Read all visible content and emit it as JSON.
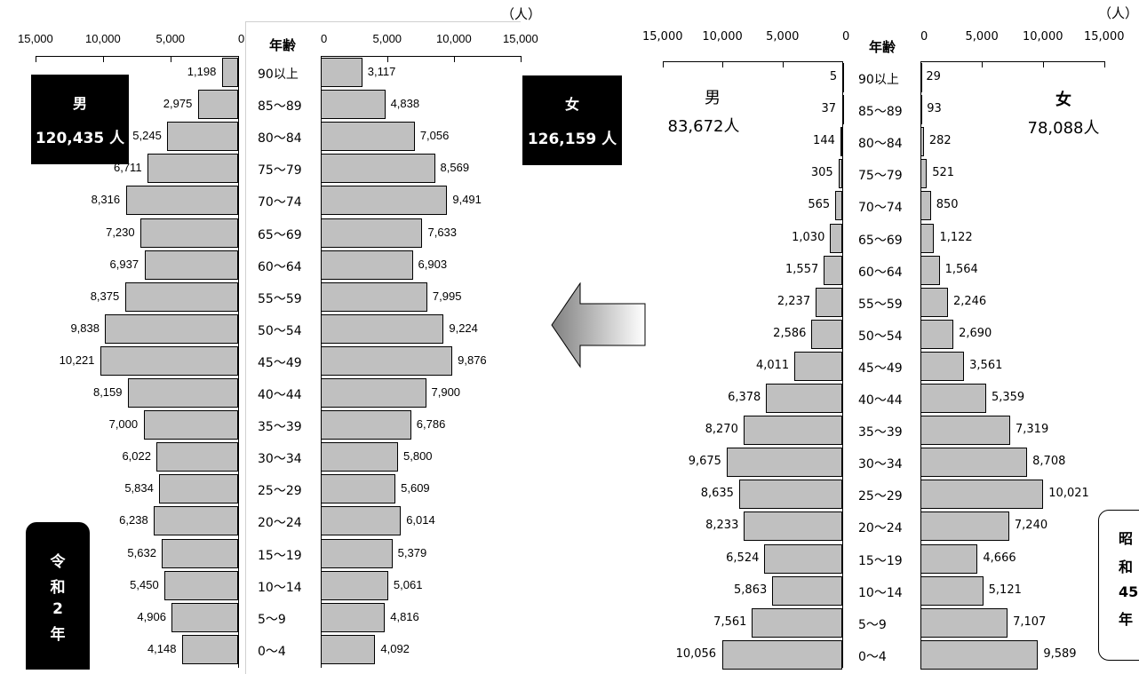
{
  "chart_data": [
    {
      "type": "bar",
      "subtype": "population-pyramid",
      "label": [
        "令",
        "和",
        "2",
        "年"
      ],
      "unit": "（人）",
      "age_header": "年齢",
      "axis_ticks": [
        "15,000",
        "10,000",
        "5,000",
        "0"
      ],
      "x_max": 15000,
      "male": {
        "name": "男",
        "total": "120,435 人"
      },
      "female": {
        "name": "女",
        "total": "126,159 人"
      },
      "categories": [
        "90以上",
        "85～89",
        "80～84",
        "75～79",
        "70～74",
        "65～69",
        "60～64",
        "55～59",
        "50～54",
        "45～49",
        "40～44",
        "35～39",
        "30～34",
        "25～29",
        "20～24",
        "15～19",
        "10～14",
        "5～9",
        "0～4"
      ],
      "series": [
        {
          "name": "男",
          "values": [
            1198,
            2975,
            5245,
            6711,
            8316,
            7230,
            6937,
            8375,
            9838,
            10221,
            8159,
            7000,
            6022,
            5834,
            6238,
            5632,
            5450,
            4906,
            4148
          ]
        },
        {
          "name": "女",
          "values": [
            3117,
            4838,
            7056,
            8569,
            9491,
            7633,
            6903,
            7995,
            9224,
            9876,
            7900,
            6786,
            5800,
            5609,
            6014,
            5379,
            5061,
            4816,
            4092
          ]
        }
      ]
    },
    {
      "type": "bar",
      "subtype": "population-pyramid",
      "label": [
        "昭",
        "和",
        "45",
        "年"
      ],
      "unit": "（人）",
      "age_header": "年齢",
      "axis_ticks": [
        "15,000",
        "10,000",
        "5,000",
        "0"
      ],
      "x_max": 15000,
      "male": {
        "name": "男",
        "total": "83,672人"
      },
      "female": {
        "name": "女",
        "total": "78,088人"
      },
      "categories": [
        "90以上",
        "85～89",
        "80～84",
        "75～79",
        "70～74",
        "65～69",
        "60～64",
        "55～59",
        "50～54",
        "45～49",
        "40～44",
        "35～39",
        "30～34",
        "25～29",
        "20～24",
        "15～19",
        "10～14",
        "5～9",
        "0～4"
      ],
      "series": [
        {
          "name": "男",
          "values": [
            5,
            37,
            144,
            305,
            565,
            1030,
            1557,
            2237,
            2586,
            4011,
            6378,
            8270,
            9675,
            8635,
            8233,
            6524,
            5863,
            7561,
            10056
          ]
        },
        {
          "name": "女",
          "values": [
            29,
            93,
            282,
            521,
            850,
            1122,
            1564,
            2246,
            2690,
            3561,
            5359,
            7319,
            8708,
            10021,
            7240,
            4666,
            5121,
            7107,
            9589
          ]
        }
      ]
    }
  ],
  "colors": {
    "bar_fill": "#c0c0c0",
    "bar_stroke": "#000000",
    "badge_bg": "#000000",
    "badge_text": "#ffffff",
    "arrow_light": "#ffffff",
    "arrow_dark": "#808080"
  },
  "icons": {
    "arrow": "left-arrow-icon"
  }
}
